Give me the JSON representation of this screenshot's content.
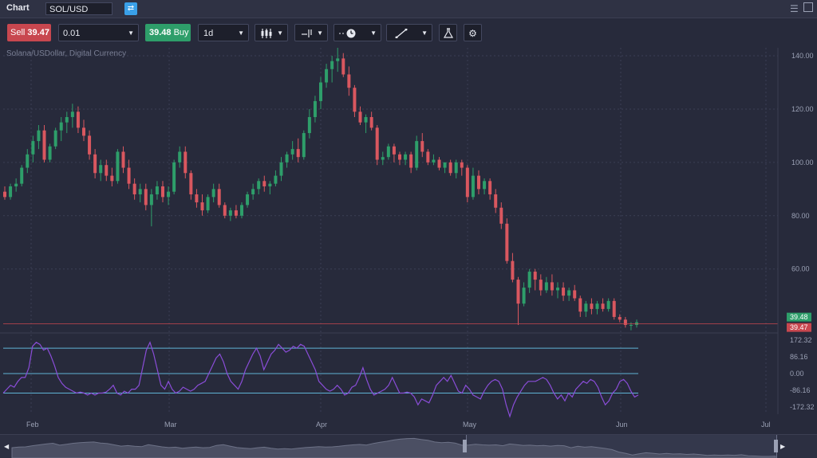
{
  "window": {
    "title": "Chart",
    "symbol": "SOL/USD"
  },
  "toolbar": {
    "sell_label": "Sell",
    "sell_price": "39.47",
    "quantity": "0.01",
    "buy_price": "39.48",
    "buy_label": "Buy",
    "timeframe": "1d"
  },
  "chart": {
    "instrument_label": "Solana/USDollar, Digital Currency",
    "price_axis_ticks": [
      "140.00",
      "120.00",
      "100.00",
      "80.00",
      "60.00"
    ],
    "ask_tag": "39.48",
    "bid_tag": "39.47",
    "indicator_axis_ticks": [
      "172.32",
      "86.16",
      "0.00",
      "-86.16",
      "-172.32"
    ],
    "date_ticks": [
      "Feb",
      "Mar",
      "Apr",
      "May",
      "Jun",
      "Jul"
    ],
    "colors": {
      "up": "#2e9e6a",
      "down": "#d9575f",
      "indicator": "#8a4dd8",
      "level": "#5fb3d6",
      "bid_line": "#c8474f"
    }
  },
  "chart_data": {
    "type": "candlestick",
    "ylim": [
      36,
      143
    ],
    "candles": [
      [
        89,
        91,
        86,
        87
      ],
      [
        87,
        92,
        86,
        91
      ],
      [
        91,
        94,
        89,
        92
      ],
      [
        92,
        99,
        91,
        98
      ],
      [
        98,
        105,
        96,
        103
      ],
      [
        103,
        110,
        100,
        108
      ],
      [
        108,
        114,
        105,
        112
      ],
      [
        112,
        114,
        100,
        101
      ],
      [
        101,
        107,
        100,
        106
      ],
      [
        106,
        113,
        105,
        112
      ],
      [
        112,
        117,
        108,
        115
      ],
      [
        115,
        119,
        111,
        117
      ],
      [
        117,
        122,
        113,
        119
      ],
      [
        119,
        121,
        111,
        113
      ],
      [
        113,
        116,
        108,
        110
      ],
      [
        110,
        112,
        101,
        103
      ],
      [
        103,
        105,
        94,
        96
      ],
      [
        96,
        101,
        93,
        99
      ],
      [
        99,
        101,
        93,
        95
      ],
      [
        95,
        98,
        91,
        93
      ],
      [
        93,
        105,
        92,
        104
      ],
      [
        104,
        106,
        96,
        98
      ],
      [
        98,
        101,
        90,
        92
      ],
      [
        92,
        94,
        86,
        88
      ],
      [
        88,
        92,
        85,
        90
      ],
      [
        90,
        92,
        82,
        84
      ],
      [
        84,
        90,
        76,
        88
      ],
      [
        88,
        93,
        86,
        91
      ],
      [
        91,
        93,
        85,
        87
      ],
      [
        87,
        91,
        84,
        89
      ],
      [
        89,
        101,
        88,
        100
      ],
      [
        100,
        106,
        98,
        104
      ],
      [
        104,
        106,
        94,
        96
      ],
      [
        96,
        97,
        86,
        88
      ],
      [
        88,
        90,
        83,
        85
      ],
      [
        85,
        88,
        80,
        82
      ],
      [
        82,
        88,
        81,
        87
      ],
      [
        87,
        92,
        85,
        90
      ],
      [
        90,
        92,
        83,
        84
      ],
      [
        84,
        85,
        79,
        80
      ],
      [
        80,
        83,
        78,
        82
      ],
      [
        82,
        84,
        79,
        80
      ],
      [
        80,
        85,
        79,
        84
      ],
      [
        84,
        89,
        83,
        88
      ],
      [
        88,
        92,
        86,
        90
      ],
      [
        90,
        94,
        88,
        93
      ],
      [
        93,
        95,
        89,
        91
      ],
      [
        91,
        93,
        88,
        92
      ],
      [
        92,
        97,
        91,
        95
      ],
      [
        95,
        102,
        93,
        100
      ],
      [
        100,
        104,
        98,
        103
      ],
      [
        103,
        108,
        101,
        105
      ],
      [
        105,
        109,
        100,
        102
      ],
      [
        102,
        112,
        101,
        111
      ],
      [
        111,
        120,
        109,
        117
      ],
      [
        117,
        125,
        115,
        123
      ],
      [
        123,
        132,
        120,
        130
      ],
      [
        130,
        137,
        128,
        135
      ],
      [
        135,
        140,
        130,
        138
      ],
      [
        138,
        143,
        134,
        139
      ],
      [
        139,
        141,
        132,
        133
      ],
      [
        133,
        136,
        125,
        128
      ],
      [
        128,
        129,
        117,
        119
      ],
      [
        119,
        121,
        114,
        115
      ],
      [
        115,
        118,
        111,
        117
      ],
      [
        117,
        119,
        112,
        113
      ],
      [
        113,
        114,
        99,
        101
      ],
      [
        101,
        104,
        99,
        102
      ],
      [
        102,
        107,
        101,
        106
      ],
      [
        106,
        107,
        100,
        103
      ],
      [
        103,
        104,
        99,
        101
      ],
      [
        101,
        104,
        99,
        103
      ],
      [
        103,
        104,
        96,
        98
      ],
      [
        98,
        110,
        97,
        108
      ],
      [
        108,
        111,
        102,
        104
      ],
      [
        104,
        105,
        99,
        100
      ],
      [
        100,
        103,
        99,
        101
      ],
      [
        101,
        102,
        97,
        98
      ],
      [
        98,
        100,
        96,
        100
      ],
      [
        100,
        101,
        95,
        96
      ],
      [
        96,
        101,
        94,
        100
      ],
      [
        100,
        101,
        95,
        98
      ],
      [
        98,
        99,
        85,
        87
      ],
      [
        87,
        98,
        86,
        95
      ],
      [
        95,
        97,
        88,
        90
      ],
      [
        90,
        94,
        88,
        93
      ],
      [
        93,
        94,
        86,
        88
      ],
      [
        88,
        90,
        81,
        83
      ],
      [
        83,
        85,
        75,
        77
      ],
      [
        77,
        79,
        62,
        63
      ],
      [
        63,
        66,
        55,
        56
      ],
      [
        56,
        57,
        39,
        47
      ],
      [
        47,
        55,
        46,
        53
      ],
      [
        53,
        60,
        51,
        59
      ],
      [
        59,
        60,
        52,
        56
      ],
      [
        56,
        58,
        50,
        52
      ],
      [
        52,
        57,
        51,
        55
      ],
      [
        55,
        58,
        50,
        52
      ],
      [
        52,
        55,
        49,
        53
      ],
      [
        53,
        55,
        48,
        50
      ],
      [
        50,
        53,
        48,
        52
      ],
      [
        52,
        54,
        48,
        49
      ],
      [
        49,
        50,
        42,
        44
      ],
      [
        44,
        48,
        42,
        47
      ],
      [
        47,
        49,
        43,
        45
      ],
      [
        45,
        48,
        43,
        47
      ],
      [
        47,
        49,
        44,
        45
      ],
      [
        45,
        49,
        44,
        48
      ],
      [
        48,
        49,
        41,
        42
      ],
      [
        42,
        43,
        40,
        41
      ],
      [
        41,
        42,
        38,
        39
      ],
      [
        39,
        40,
        37,
        39
      ],
      [
        39,
        41,
        38,
        40
      ]
    ],
    "indicator_ylim": [
      -200,
      200
    ],
    "indicator_levels": [
      130,
      0,
      -100
    ],
    "indicator": [
      -100,
      -80,
      -60,
      -70,
      -40,
      -20,
      -20,
      30,
      140,
      160,
      150,
      120,
      130,
      90,
      40,
      -20,
      -50,
      -70,
      -80,
      -90,
      -100,
      -95,
      -100,
      -110,
      -100,
      -110,
      -100,
      -100,
      -95,
      -80,
      -60,
      -100,
      -110,
      -90,
      -100,
      -80,
      -80,
      -60,
      30,
      120,
      160,
      100,
      20,
      -60,
      -80,
      -40,
      -80,
      -100,
      -90,
      -70,
      -80,
      -90,
      -80,
      -60,
      -50,
      -40,
      0,
      40,
      80,
      100,
      60,
      0,
      -40,
      -60,
      -80,
      -40,
      20,
      60,
      100,
      130,
      90,
      20,
      60,
      100,
      120,
      150,
      130,
      110,
      120,
      140,
      130,
      150,
      140,
      100,
      60,
      20,
      -40,
      -60,
      -80,
      -90,
      -80,
      -60,
      -80,
      -110,
      -100,
      -70,
      -60,
      -20,
      30,
      -30,
      -80,
      -110,
      -100,
      -90,
      -80,
      -60,
      -20,
      -60,
      -100,
      -100,
      -95,
      -100,
      -120,
      -160,
      -130,
      -140,
      -150,
      -110,
      -60,
      -40,
      -20,
      -40,
      -10,
      -50,
      -90,
      -100,
      -60,
      -80,
      -110,
      -120,
      -130,
      -90,
      -60,
      -40,
      -30,
      -40,
      -80,
      -160,
      -220,
      -160,
      -120,
      -90,
      -60,
      -40,
      -40,
      -40,
      -30,
      -20,
      -30,
      -60,
      -100,
      -130,
      -110,
      -140,
      -100,
      -120,
      -80,
      -60,
      -40,
      -50,
      -30,
      -40,
      -70,
      -120,
      -160,
      -140,
      -100,
      -80,
      -40,
      -30,
      -50,
      -90,
      -120,
      -110
    ]
  }
}
